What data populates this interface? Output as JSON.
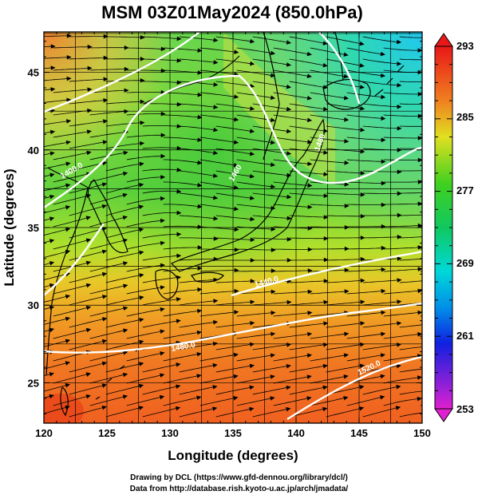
{
  "title": "MSM 03Z01May2024 (850.0hPa)",
  "xlabel": "Longitude (degrees)",
  "ylabel": "Latitude  (degrees)",
  "x_ticks": [
    "120",
    "125",
    "130",
    "135",
    "140",
    "145",
    "150"
  ],
  "y_ticks": [
    "25",
    "30",
    "35",
    "40",
    "45"
  ],
  "x_range": [
    120,
    150
  ],
  "y_range": [
    22.4,
    47.6
  ],
  "colorbar": {
    "min": 253,
    "max": 293,
    "labels": [
      "293",
      "285",
      "277",
      "269",
      "261",
      "253"
    ],
    "colors": {
      "magenta": "#e020d0",
      "blue": "#1020e0",
      "cyan": "#00d8d8",
      "green": "#10c810",
      "yellow": "#e0e020",
      "orange": "#f08020",
      "red": "#e81818"
    }
  },
  "contour_labels": [
    "1400.0",
    "1440.0",
    "1480.0",
    "1520.0",
    "1460",
    "1480"
  ],
  "credits": {
    "line1": "Drawing by DCL (https://www.gfd-dennou.org/library/dcl/)",
    "line2": "Data from http://database.rish.kyoto-u.ac.jp/arch/jmadata/"
  }
}
